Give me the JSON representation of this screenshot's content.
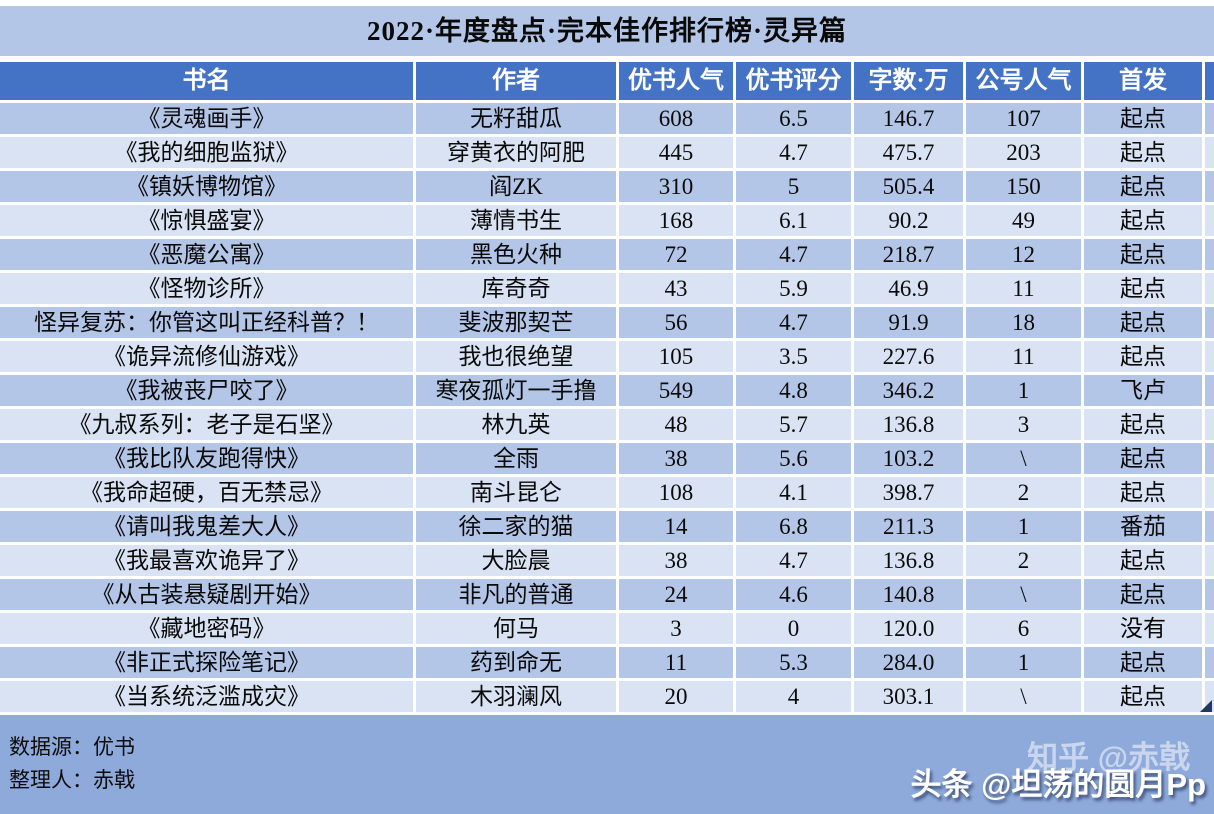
{
  "title": "2022·年度盘点·完本佳作排行榜·灵异篇",
  "chart_data": {
    "type": "table",
    "title": "2022·年度盘点·完本佳作排行榜·灵异篇",
    "columns": [
      "书名",
      "作者",
      "优书人气",
      "优书评分",
      "字数·万",
      "公号人气",
      "首发"
    ],
    "rows": [
      [
        "《灵魂画手》",
        "无籽甜瓜",
        "608",
        "6.5",
        "146.7",
        "107",
        "起点"
      ],
      [
        "《我的细胞监狱》",
        "穿黄衣的阿肥",
        "445",
        "4.7",
        "475.7",
        "203",
        "起点"
      ],
      [
        "《镇妖博物馆》",
        "阎ZK",
        "310",
        "5",
        "505.4",
        "150",
        "起点"
      ],
      [
        "《惊惧盛宴》",
        "薄情书生",
        "168",
        "6.1",
        "90.2",
        "49",
        "起点"
      ],
      [
        "《恶魔公寓》",
        "黑色火种",
        "72",
        "4.7",
        "218.7",
        "12",
        "起点"
      ],
      [
        "《怪物诊所》",
        "库奇奇",
        "43",
        "5.9",
        "46.9",
        "11",
        "起点"
      ],
      [
        "怪异复苏：你管这叫正经科普？！",
        "斐波那契芒",
        "56",
        "4.7",
        "91.9",
        "18",
        "起点"
      ],
      [
        "《诡异流修仙游戏》",
        "我也很绝望",
        "105",
        "3.5",
        "227.6",
        "11",
        "起点"
      ],
      [
        "《我被丧尸咬了》",
        "寒夜孤灯一手撸",
        "549",
        "4.8",
        "346.2",
        "1",
        "飞卢"
      ],
      [
        "《九叔系列：老子是石坚》",
        "林九英",
        "48",
        "5.7",
        "136.8",
        "3",
        "起点"
      ],
      [
        "《我比队友跑得快》",
        "全雨",
        "38",
        "5.6",
        "103.2",
        "\\",
        "起点"
      ],
      [
        "《我命超硬，百无禁忌》",
        "南斗昆仑",
        "108",
        "4.1",
        "398.7",
        "2",
        "起点"
      ],
      [
        "《请叫我鬼差大人》",
        "徐二家的猫",
        "14",
        "6.8",
        "211.3",
        "1",
        "番茄"
      ],
      [
        "《我最喜欢诡异了》",
        "大脸晨",
        "38",
        "4.7",
        "136.8",
        "2",
        "起点"
      ],
      [
        "《从古装悬疑剧开始》",
        "非凡的普通",
        "24",
        "4.6",
        "140.8",
        "\\",
        "起点"
      ],
      [
        "《藏地密码》",
        "何马",
        "3",
        "0",
        "120.0",
        "6",
        "没有"
      ],
      [
        "《非正式探险笔记》",
        "药到命无",
        "11",
        "5.3",
        "284.0",
        "1",
        "起点"
      ],
      [
        "《当系统泛滥成灾》",
        "木羽澜风",
        "20",
        "4",
        "303.1",
        "\\",
        "起点"
      ]
    ]
  },
  "footer": {
    "source_label": "数据源：优书",
    "editor_label": "整理人：赤戟",
    "watermark_zhihu": "知乎 @赤戟",
    "watermark_toutiao": "头条 @坦荡的圆月Pp"
  },
  "colors": {
    "title_bg": "#b4c6e7",
    "header_bg": "#4472c4",
    "header_text": "#ffffff",
    "row_band_dark": "#b4c6e7",
    "row_band_light": "#dae3f3",
    "footer_bg": "#8eaadb",
    "gridline": "#ffffff",
    "corner_marker": "#1f3864"
  }
}
